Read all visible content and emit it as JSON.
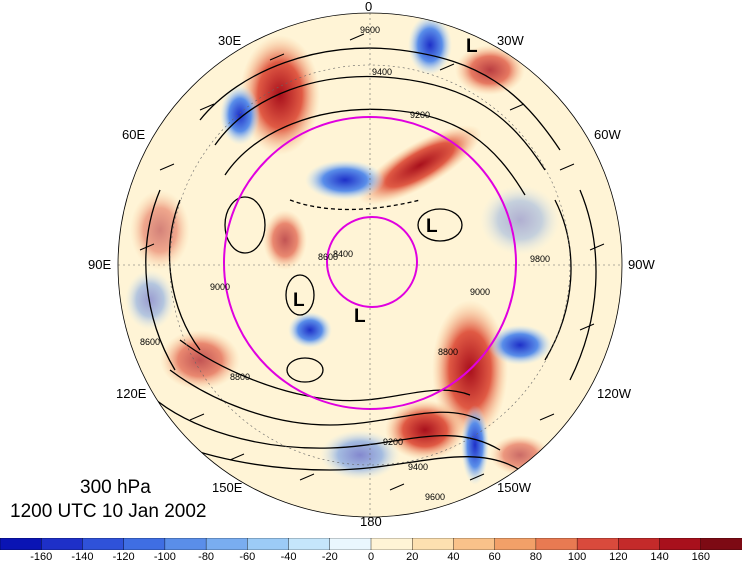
{
  "map": {
    "title_level": "300 hPa",
    "title_time": "1200 UTC 10 Jan 2002",
    "longitude_labels": {
      "top": "0",
      "bottom": "180",
      "lon_30e": "30E",
      "lon_30w": "30W",
      "lon_60e": "60E",
      "lon_60w": "60W",
      "lon_90e": "90E",
      "lon_90w": "90W",
      "lon_120e": "120E",
      "lon_120w": "120W",
      "lon_150e": "150E",
      "lon_150w": "150W"
    },
    "contour_labels": [
      "9600",
      "9400",
      "9200",
      "9000",
      "8800",
      "8600",
      "8400",
      "9200",
      "9400",
      "9600",
      "9800",
      "9000",
      "8800",
      "8600"
    ],
    "low_marker": "L",
    "colors": {
      "contour": "#000000",
      "circle": "#e000e0",
      "positive": "#b0101c",
      "negative": "#1e30c8",
      "neutral": "#fff4d6"
    },
    "colorbar": {
      "ticks": [
        "-160",
        "-140",
        "-120",
        "-100",
        "-80",
        "-60",
        "-40",
        "-20",
        "0",
        "20",
        "40",
        "60",
        "80",
        "100",
        "120",
        "140",
        "160"
      ],
      "colors": [
        "#0a14b4",
        "#1e30c8",
        "#2f52d9",
        "#3f6ee3",
        "#5a8ee9",
        "#79adf0",
        "#9ccbf6",
        "#c5e6fb",
        "#eaf7fe",
        "#fff4d6",
        "#fde0b0",
        "#f9c28a",
        "#f2a068",
        "#e87a52",
        "#d94a3c",
        "#c42a2a",
        "#a8101c",
        "#7d0a14"
      ]
    }
  }
}
